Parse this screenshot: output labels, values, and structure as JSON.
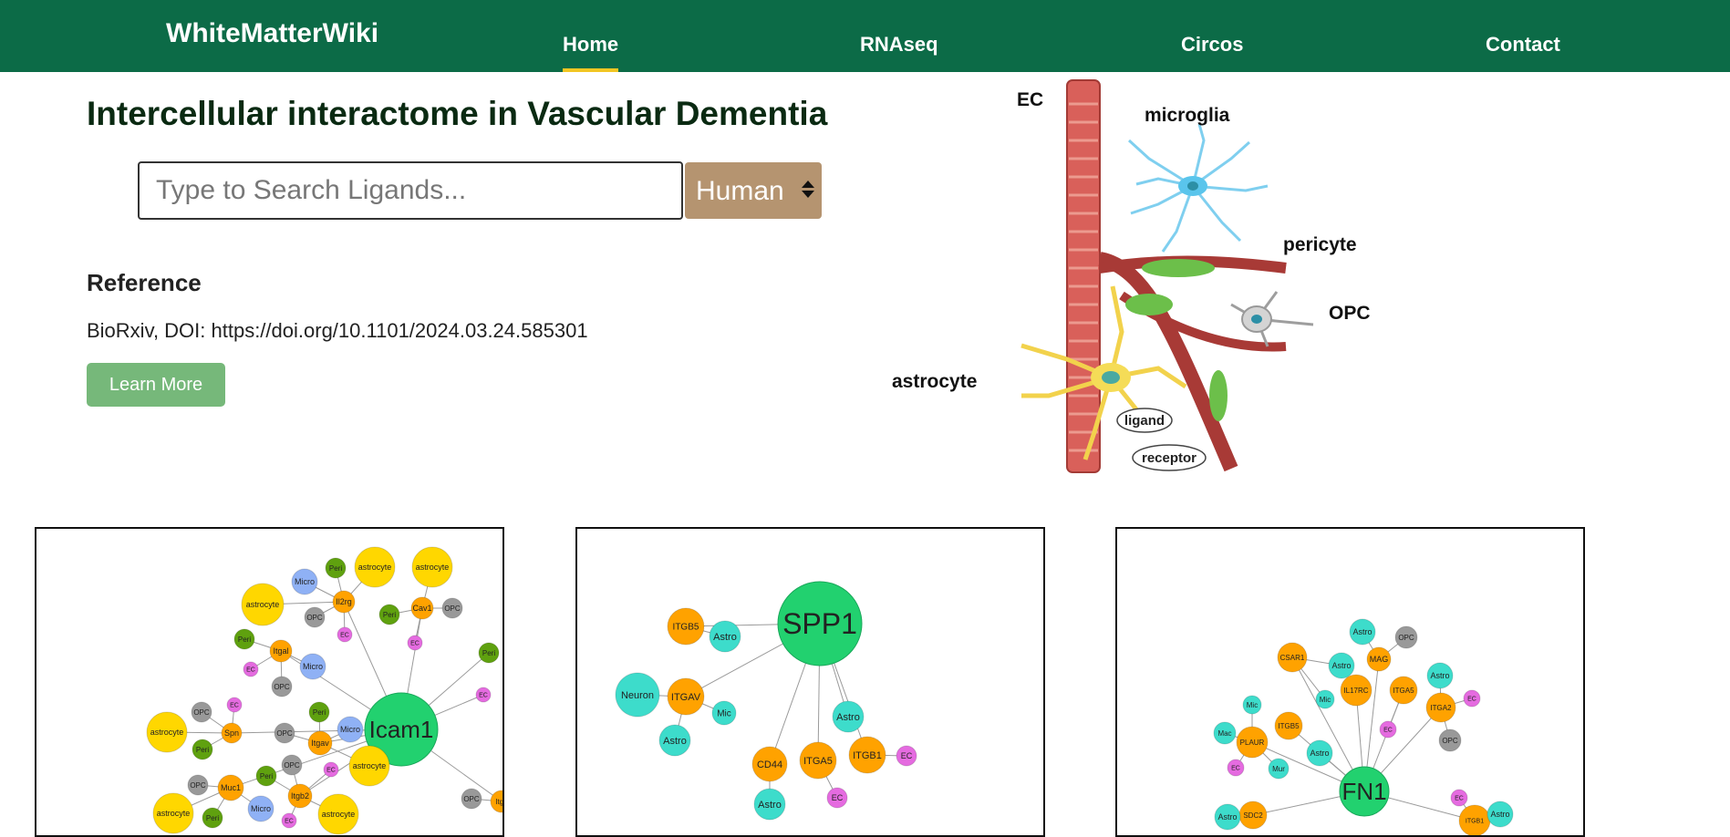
{
  "nav": {
    "brand": "WhiteMatterWiki",
    "links": [
      {
        "label": "Home",
        "active": true
      },
      {
        "label": "RNAseq",
        "active": false
      },
      {
        "label": "Circos",
        "active": false
      },
      {
        "label": "Contact",
        "active": false
      }
    ],
    "active_indicator_color": "#f3c623"
  },
  "title": "Intercellular interactome in Vascular Dementia",
  "search": {
    "placeholder": "Type to Search Ligands...",
    "value": ""
  },
  "species": {
    "selected": "Human"
  },
  "reference": {
    "heading": "Reference",
    "text": "BioRxiv, DOI: https://doi.org/10.1101/2024.03.24.585301",
    "button": "Learn More"
  },
  "illustration_labels": {
    "ec": "EC",
    "microglia": "microglia",
    "pericyte": "pericyte",
    "opc": "OPC",
    "astrocyte": "astrocyte",
    "ligand": "ligand",
    "receptor": "receptor"
  },
  "colors": {
    "navbar": "#0c6b47",
    "select": "#b59470",
    "button": "#76b87a",
    "hub": "#22d16f",
    "ligand_receptor": "#ffa200",
    "astrocyte": "#ffd700",
    "micro": "#8fb1f5",
    "opc": "#999999",
    "peri": "#5fa10f",
    "ec": "#e56be0",
    "astro_cyan": "#3ddccb"
  },
  "networks": [
    {
      "hub": "Icam1",
      "nodes": [
        {
          "label": "Icam1",
          "type": "hub"
        },
        {
          "label": "Il2rg",
          "type": "gene"
        },
        {
          "label": "Itgal",
          "type": "gene"
        },
        {
          "label": "Cav1",
          "type": "gene"
        },
        {
          "label": "Spn",
          "type": "gene"
        },
        {
          "label": "Itgav",
          "type": "gene"
        },
        {
          "label": "Muc1",
          "type": "gene"
        },
        {
          "label": "Itgb2",
          "type": "gene"
        },
        {
          "label": "Itgb",
          "type": "gene"
        },
        {
          "label": "astrocyte",
          "type": "astrocyte"
        },
        {
          "label": "astrocyte",
          "type": "astrocyte"
        },
        {
          "label": "astrocyte",
          "type": "astrocyte"
        },
        {
          "label": "astrocyte",
          "type": "astrocyte"
        },
        {
          "label": "astrocyte",
          "type": "astrocyte"
        },
        {
          "label": "astrocyte",
          "type": "astrocyte"
        },
        {
          "label": "astrocyte",
          "type": "astrocyte"
        },
        {
          "label": "Micro",
          "type": "micro"
        },
        {
          "label": "Micro",
          "type": "micro"
        },
        {
          "label": "Micro",
          "type": "micro"
        },
        {
          "label": "Micro",
          "type": "micro"
        },
        {
          "label": "Peri",
          "type": "peri"
        },
        {
          "label": "Peri",
          "type": "peri"
        },
        {
          "label": "Peri",
          "type": "peri"
        },
        {
          "label": "Peri",
          "type": "peri"
        },
        {
          "label": "Peri",
          "type": "peri"
        },
        {
          "label": "Peri",
          "type": "peri"
        },
        {
          "label": "Peri",
          "type": "peri"
        },
        {
          "label": "Peri",
          "type": "peri"
        },
        {
          "label": "OPC",
          "type": "opc"
        },
        {
          "label": "OPC",
          "type": "opc"
        },
        {
          "label": "OPC",
          "type": "opc"
        },
        {
          "label": "OPC",
          "type": "opc"
        },
        {
          "label": "OPC",
          "type": "opc"
        },
        {
          "label": "OPC",
          "type": "opc"
        },
        {
          "label": "OPC",
          "type": "opc"
        },
        {
          "label": "OPC",
          "type": "opc"
        },
        {
          "label": "EC",
          "type": "ec"
        },
        {
          "label": "EC",
          "type": "ec"
        },
        {
          "label": "EC",
          "type": "ec"
        },
        {
          "label": "EC",
          "type": "ec"
        },
        {
          "label": "EC",
          "type": "ec"
        },
        {
          "label": "EC",
          "type": "ec"
        },
        {
          "label": "EC",
          "type": "ec"
        }
      ]
    },
    {
      "hub": "SPP1",
      "nodes": [
        {
          "label": "SPP1",
          "type": "hub"
        },
        {
          "label": "ITGB5",
          "type": "gene"
        },
        {
          "label": "ITGAV",
          "type": "gene"
        },
        {
          "label": "CD44",
          "type": "gene"
        },
        {
          "label": "ITGA5",
          "type": "gene"
        },
        {
          "label": "ITGB1",
          "type": "gene"
        },
        {
          "label": "Astro",
          "type": "cyan"
        },
        {
          "label": "Astro",
          "type": "cyan"
        },
        {
          "label": "Astro",
          "type": "cyan"
        },
        {
          "label": "Astro",
          "type": "cyan"
        },
        {
          "label": "Neuron",
          "type": "cyan"
        },
        {
          "label": "Mic",
          "type": "cyan"
        },
        {
          "label": "EC",
          "type": "ec"
        },
        {
          "label": "EC",
          "type": "ec"
        }
      ]
    },
    {
      "hub": "FN1",
      "nodes": [
        {
          "label": "FN1",
          "type": "hub"
        },
        {
          "label": "MAG",
          "type": "gene"
        },
        {
          "label": "CSAR1",
          "type": "gene"
        },
        {
          "label": "IL17RC",
          "type": "gene"
        },
        {
          "label": "ITGA5",
          "type": "gene"
        },
        {
          "label": "ITGA2",
          "type": "gene"
        },
        {
          "label": "ITGB5",
          "type": "gene"
        },
        {
          "label": "PLAUR",
          "type": "gene"
        },
        {
          "label": "SDC2",
          "type": "gene"
        },
        {
          "label": "ITGB1",
          "type": "gene"
        },
        {
          "label": "Astro",
          "type": "cyan"
        },
        {
          "label": "Astro",
          "type": "cyan"
        },
        {
          "label": "Astro",
          "type": "cyan"
        },
        {
          "label": "Astro",
          "type": "cyan"
        },
        {
          "label": "Astro",
          "type": "cyan"
        },
        {
          "label": "Astro",
          "type": "cyan"
        },
        {
          "label": "Mic",
          "type": "cyan"
        },
        {
          "label": "Mic",
          "type": "cyan"
        },
        {
          "label": "Mac",
          "type": "cyan"
        },
        {
          "label": "Mur",
          "type": "cyan"
        },
        {
          "label": "OPC",
          "type": "opc"
        },
        {
          "label": "OPC",
          "type": "opc"
        },
        {
          "label": "EC",
          "type": "ec"
        },
        {
          "label": "EC",
          "type": "ec"
        },
        {
          "label": "EC",
          "type": "ec"
        },
        {
          "label": "EC",
          "type": "ec"
        }
      ]
    }
  ]
}
